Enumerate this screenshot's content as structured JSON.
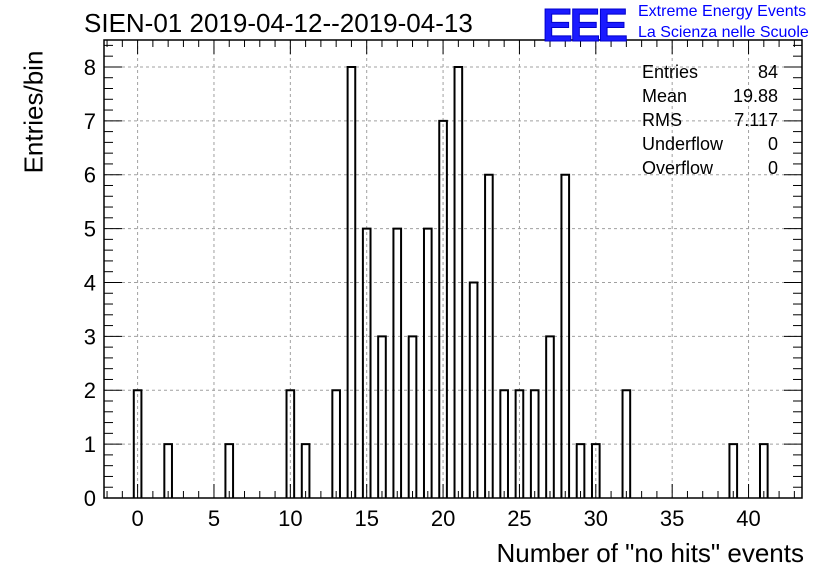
{
  "title": "SIEN-01 2019-04-12--2019-04-13",
  "logo": {
    "mark": "EEE",
    "line1": "Extreme Energy Events",
    "line2": "La Scienza nelle Scuole",
    "color": "#0000ff"
  },
  "stats": [
    {
      "label": "Entries",
      "value": "84"
    },
    {
      "label": "Mean",
      "value": "19.88"
    },
    {
      "label": "RMS",
      "value": "7.117"
    },
    {
      "label": "Underflow",
      "value": "0"
    },
    {
      "label": "Overflow",
      "value": "0"
    }
  ],
  "chart_data": {
    "type": "bar",
    "style": "histogram",
    "title": "SIEN-01 2019-04-12--2019-04-13",
    "xlabel": "Number of \"no hits\" events",
    "ylabel": "Entries/bin",
    "xlim": [
      -2.2,
      43.5
    ],
    "ylim": [
      0,
      8.5
    ],
    "xticks": [
      0,
      5,
      10,
      15,
      20,
      25,
      30,
      35,
      40
    ],
    "yticks": [
      0,
      1,
      2,
      3,
      4,
      5,
      6,
      7,
      8
    ],
    "grid": true,
    "bin_width": 1,
    "bars": [
      {
        "x": 0,
        "y": 2
      },
      {
        "x": 2,
        "y": 1
      },
      {
        "x": 6,
        "y": 1
      },
      {
        "x": 10,
        "y": 2
      },
      {
        "x": 11,
        "y": 1
      },
      {
        "x": 13,
        "y": 2
      },
      {
        "x": 14,
        "y": 8
      },
      {
        "x": 15,
        "y": 5
      },
      {
        "x": 16,
        "y": 3
      },
      {
        "x": 17,
        "y": 5
      },
      {
        "x": 18,
        "y": 3
      },
      {
        "x": 19,
        "y": 5
      },
      {
        "x": 20,
        "y": 7
      },
      {
        "x": 21,
        "y": 8
      },
      {
        "x": 22,
        "y": 4
      },
      {
        "x": 23,
        "y": 6
      },
      {
        "x": 24,
        "y": 2
      },
      {
        "x": 25,
        "y": 2
      },
      {
        "x": 26,
        "y": 2
      },
      {
        "x": 27,
        "y": 3
      },
      {
        "x": 28,
        "y": 6
      },
      {
        "x": 29,
        "y": 1
      },
      {
        "x": 30,
        "y": 1
      },
      {
        "x": 32,
        "y": 2
      },
      {
        "x": 39,
        "y": 1
      },
      {
        "x": 41,
        "y": 1
      }
    ]
  }
}
